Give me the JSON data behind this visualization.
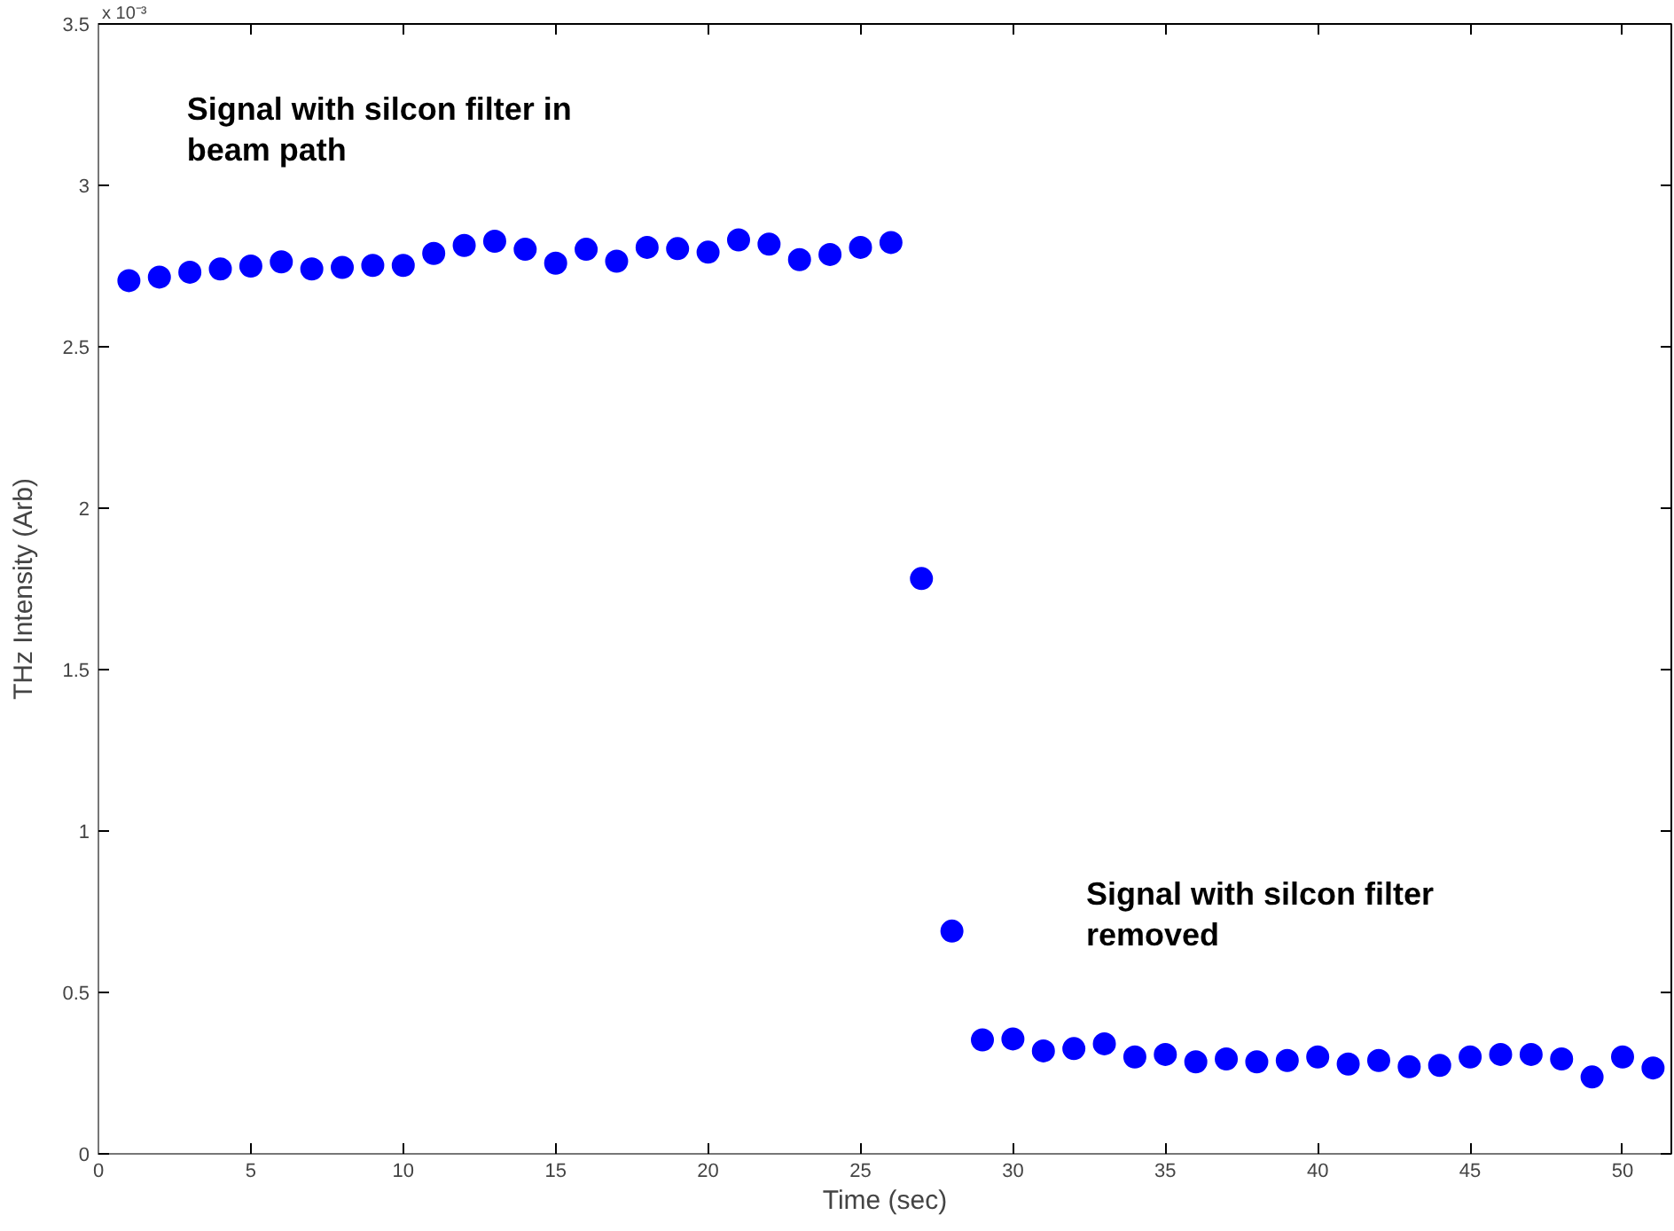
{
  "chart_data": {
    "type": "scatter",
    "xlabel": "Time (sec)",
    "ylabel": "THz Intensity (Arb)",
    "x": [
      1,
      2,
      3,
      4,
      5,
      6,
      7,
      8,
      9,
      10,
      11,
      12,
      13,
      14,
      15,
      16,
      17,
      18,
      19,
      20,
      21,
      22,
      23,
      24,
      25,
      26,
      27,
      28,
      29,
      30,
      31,
      32,
      33,
      34,
      35,
      36,
      37,
      38,
      39,
      40,
      41,
      42,
      43,
      44,
      45,
      46,
      47,
      48,
      49,
      50,
      51
    ],
    "series": [
      {
        "color": "#0000ff",
        "values": [
          2.705,
          2.716,
          2.731,
          2.741,
          2.75,
          2.763,
          2.741,
          2.746,
          2.752,
          2.752,
          2.789,
          2.814,
          2.827,
          2.802,
          2.759,
          2.802,
          2.765,
          2.808,
          2.804,
          2.793,
          2.831,
          2.818,
          2.77,
          2.786,
          2.808,
          2.823,
          1.782,
          0.69,
          0.353,
          0.356,
          0.319,
          0.326,
          0.341,
          0.3,
          0.308,
          0.285,
          0.294,
          0.285,
          0.289,
          0.3,
          0.278,
          0.289,
          0.27,
          0.274,
          0.3,
          0.308,
          0.308,
          0.294,
          0.238,
          0.3,
          0.266
        ]
      }
    ],
    "marker": "circle",
    "xlim": [
      0,
      51.6
    ],
    "xticks": [
      0,
      5,
      10,
      15,
      20,
      25,
      30,
      35,
      40,
      45,
      50
    ],
    "ylim": [
      0,
      3.5
    ],
    "yticks": [
      0,
      0.5,
      1,
      1.5,
      2,
      2.5,
      3,
      3.5
    ],
    "annotations": [
      "x 10⁻³",
      "Signal with silcon filter in\nbeam path",
      "Signal with silcon filter\nremoved"
    ],
    "grid": false
  }
}
